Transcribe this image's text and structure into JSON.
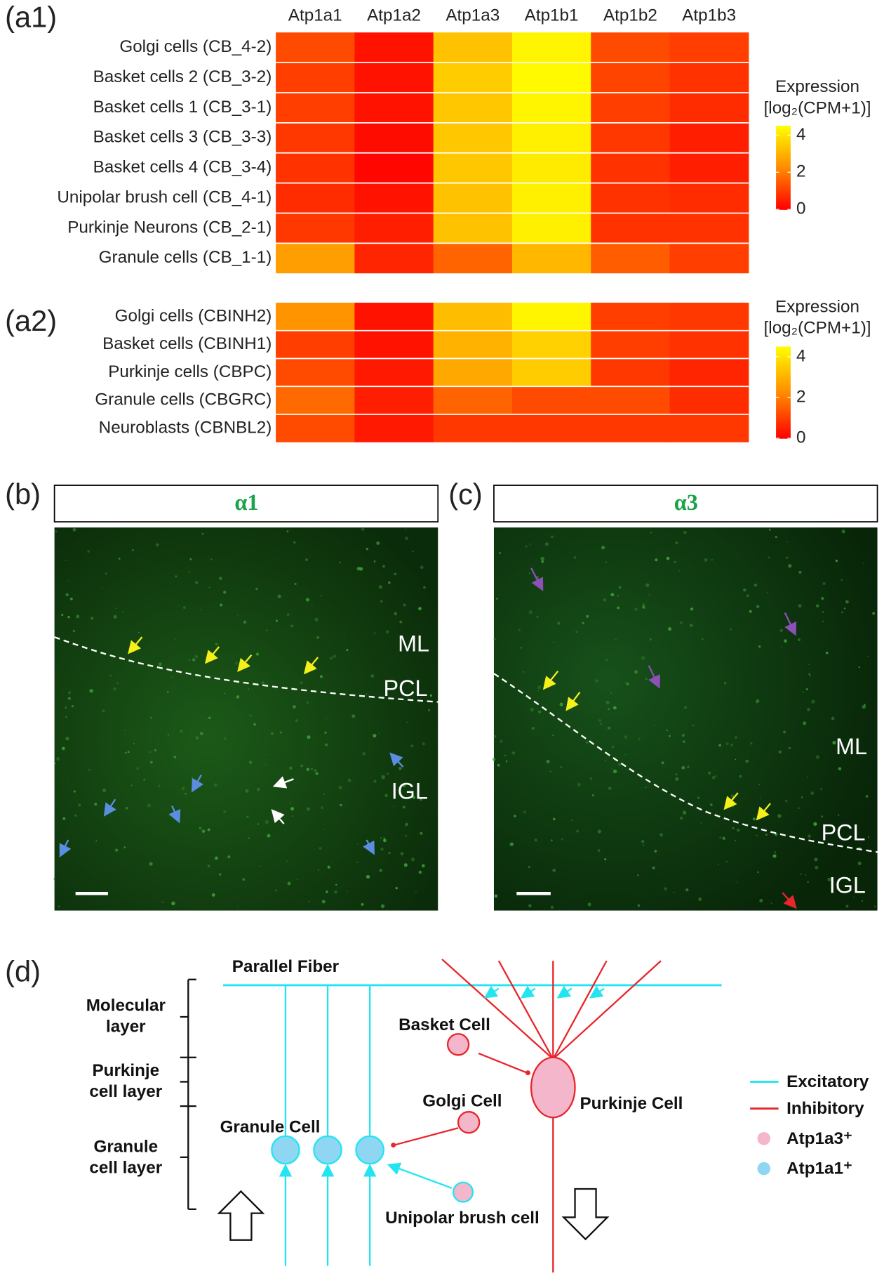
{
  "chart_data": [
    {
      "type": "heatmap",
      "panel_label": "(a1)",
      "categories": [
        "Atp1a1",
        "Atp1a2",
        "Atp1a3",
        "Atp1b1",
        "Atp1b2",
        "Atp1b3"
      ],
      "rows": [
        "Golgi cells (CB_4-2)",
        "Basket cells 2 (CB_3-2)",
        "Basket cells 1 (CB_3-1)",
        "Basket cells 3 (CB_3-3)",
        "Basket cells 4 (CB_3-4)",
        "Unipolar brush cell (CB_4-1)",
        "Purkinje Neurons (CB_2-1)",
        "Granule cells (CB_1-1)"
      ],
      "values": [
        [
          1.2,
          0.3,
          3.3,
          4.3,
          1.2,
          1.0
        ],
        [
          1.0,
          0.3,
          3.5,
          4.4,
          1.1,
          0.8
        ],
        [
          1.0,
          0.3,
          3.4,
          4.3,
          1.0,
          0.7
        ],
        [
          0.9,
          0.2,
          3.4,
          4.2,
          0.9,
          0.5
        ],
        [
          0.8,
          0.1,
          3.4,
          4.1,
          0.8,
          0.5
        ],
        [
          0.7,
          0.3,
          3.3,
          4.2,
          0.8,
          0.7
        ],
        [
          0.9,
          0.5,
          3.3,
          4.2,
          0.8,
          0.8
        ],
        [
          2.6,
          0.6,
          1.6,
          3.1,
          1.5,
          1.0
        ]
      ],
      "colorbar_title": [
        "Expression",
        "[log₂(CPM+1)]"
      ],
      "vlim": [
        0,
        4.5
      ],
      "ticks": [
        0,
        2,
        4
      ],
      "colorscale": [
        "#ff0000",
        "#ff8c00",
        "#ffff00"
      ]
    },
    {
      "type": "heatmap",
      "panel_label": "(a2)",
      "rows": [
        "Golgi cells (CBINH2)",
        "Basket cells (CBINH1)",
        "Purkinje cells (CBPC)",
        "Granule cells (CBGRC)",
        "Neuroblasts (CBNBL2)"
      ],
      "values": [
        [
          2.4,
          0.3,
          3.2,
          4.3,
          1.0,
          0.9
        ],
        [
          1.0,
          0.3,
          3.0,
          3.6,
          1.0,
          0.8
        ],
        [
          1.2,
          0.4,
          2.8,
          3.5,
          0.9,
          0.6
        ],
        [
          1.7,
          0.5,
          1.6,
          1.2,
          1.2,
          0.7
        ],
        [
          1.2,
          0.4,
          0.9,
          0.9,
          0.9,
          0.9
        ]
      ],
      "colorbar_title": [
        "Expression",
        "[log₂(CPM+1)]"
      ],
      "vlim": [
        0,
        4.5
      ],
      "ticks": [
        0,
        2,
        4
      ],
      "colorscale": [
        "#ff0000",
        "#ff8c00",
        "#ffff00"
      ]
    }
  ],
  "panels": [
    {
      "label": "(b)",
      "title": "α1",
      "layers": [
        "ML",
        "PCL",
        "IGL"
      ]
    },
    {
      "label": "(c)",
      "title": "α3",
      "layers": [
        "ML",
        "PCL",
        "IGL"
      ]
    }
  ],
  "diagram": {
    "label": "(d)",
    "parallel_fiber": "Parallel Fiber",
    "layers": [
      [
        "Molecular",
        "layer"
      ],
      [
        "Purkinje",
        "cell layer"
      ],
      [
        "Granule",
        "cell layer"
      ]
    ],
    "cells": {
      "basket": "Basket Cell",
      "golgi": "Golgi Cell",
      "granule": "Granule Cell",
      "purkinje": "Purkinje Cell",
      "ubc": "Unipolar brush cell"
    },
    "legend": [
      "Excitatory",
      "Inhibitory",
      "Atp1a3⁺",
      "Atp1a1⁺"
    ]
  }
}
